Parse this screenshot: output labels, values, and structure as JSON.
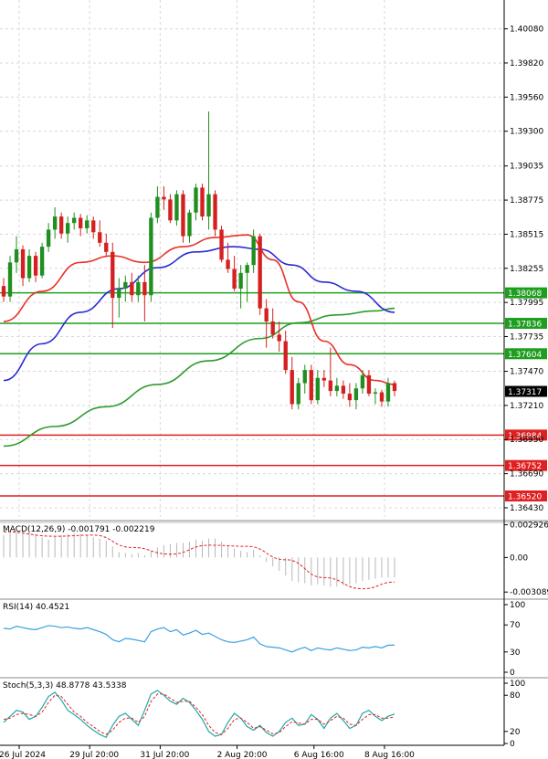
{
  "chart_data": {
    "type": "candlestick",
    "instrument_note": "",
    "price_pane": {
      "y_ticks": [
        "1.40080",
        "1.39820",
        "1.39560",
        "1.39300",
        "1.39035",
        "1.38775",
        "1.38515",
        "1.38255",
        "1.37995",
        "1.37735",
        "1.37470",
        "1.37210",
        "1.36950",
        "1.36690",
        "1.36430"
      ],
      "y_range": [
        1.3636,
        1.403
      ],
      "current_price": "1.37317",
      "levels": [
        {
          "label": "1.38068",
          "value": 1.38068,
          "color": "#1e9e1e"
        },
        {
          "label": "1.37836",
          "value": 1.37836,
          "color": "#1e9e1e"
        },
        {
          "label": "1.37604",
          "value": 1.37604,
          "color": "#1e9e1e"
        },
        {
          "label": "1.36984",
          "value": 1.36984,
          "color": "#e02020"
        },
        {
          "label": "1.36752",
          "value": 1.36752,
          "color": "#e02020"
        },
        {
          "label": "1.36520",
          "value": 1.3652,
          "color": "#e02020"
        }
      ],
      "candles": [
        [
          1.3812,
          1.3818,
          1.38,
          1.3804
        ],
        [
          1.3804,
          1.3835,
          1.38,
          1.383
        ],
        [
          1.383,
          1.385,
          1.3822,
          1.384
        ],
        [
          1.384,
          1.3843,
          1.3812,
          1.3818
        ],
        [
          1.3818,
          1.384,
          1.3815,
          1.3835
        ],
        [
          1.3835,
          1.3838,
          1.3815,
          1.382
        ],
        [
          1.382,
          1.3845,
          1.3818,
          1.3842
        ],
        [
          1.3842,
          1.386,
          1.3838,
          1.3855
        ],
        [
          1.3855,
          1.3872,
          1.3848,
          1.3865
        ],
        [
          1.3865,
          1.3868,
          1.3848,
          1.3852
        ],
        [
          1.3852,
          1.3865,
          1.3845,
          1.386
        ],
        [
          1.386,
          1.3868,
          1.3855,
          1.3864
        ],
        [
          1.3864,
          1.3867,
          1.385,
          1.3856
        ],
        [
          1.3856,
          1.3866,
          1.3852,
          1.3862
        ],
        [
          1.3862,
          1.3865,
          1.3848,
          1.3853
        ],
        [
          1.3853,
          1.3862,
          1.3842,
          1.3845
        ],
        [
          1.3845,
          1.3852,
          1.3835,
          1.3838
        ],
        [
          1.3838,
          1.3845,
          1.378,
          1.3803
        ],
        [
          1.3803,
          1.3818,
          1.3788,
          1.381
        ],
        [
          1.381,
          1.382,
          1.38,
          1.3815
        ],
        [
          1.3815,
          1.3822,
          1.38,
          1.3805
        ],
        [
          1.3805,
          1.382,
          1.38,
          1.3815
        ],
        [
          1.3815,
          1.3828,
          1.3785,
          1.3805
        ],
        [
          1.3805,
          1.3868,
          1.38,
          1.3864
        ],
        [
          1.3864,
          1.3888,
          1.386,
          1.388
        ],
        [
          1.388,
          1.3888,
          1.387,
          1.3878
        ],
        [
          1.3878,
          1.3882,
          1.386,
          1.3862
        ],
        [
          1.3862,
          1.3885,
          1.3858,
          1.3882
        ],
        [
          1.3882,
          1.3885,
          1.3845,
          1.385
        ],
        [
          1.385,
          1.387,
          1.3845,
          1.3868
        ],
        [
          1.3868,
          1.389,
          1.3862,
          1.3887
        ],
        [
          1.3887,
          1.389,
          1.3862,
          1.3865
        ],
        [
          1.3865,
          1.3945,
          1.3855,
          1.3882
        ],
        [
          1.3882,
          1.3885,
          1.385,
          1.3855
        ],
        [
          1.3855,
          1.3858,
          1.383,
          1.3832
        ],
        [
          1.3832,
          1.3845,
          1.3822,
          1.3825
        ],
        [
          1.3825,
          1.3835,
          1.3808,
          1.381
        ],
        [
          1.381,
          1.3828,
          1.3795,
          1.3822
        ],
        [
          1.3822,
          1.383,
          1.38,
          1.3828
        ],
        [
          1.3828,
          1.3855,
          1.3822,
          1.385
        ],
        [
          1.385,
          1.3852,
          1.379,
          1.3795
        ],
        [
          1.3795,
          1.3802,
          1.3765,
          1.3785
        ],
        [
          1.3785,
          1.3795,
          1.3772,
          1.3775
        ],
        [
          1.3775,
          1.3785,
          1.3762,
          1.377
        ],
        [
          1.377,
          1.3778,
          1.3745,
          1.3748
        ],
        [
          1.3748,
          1.3758,
          1.3718,
          1.3722
        ],
        [
          1.3722,
          1.3742,
          1.3718,
          1.3738
        ],
        [
          1.3738,
          1.3752,
          1.373,
          1.3748
        ],
        [
          1.3748,
          1.3752,
          1.3722,
          1.3725
        ],
        [
          1.3725,
          1.3748,
          1.3722,
          1.3742
        ],
        [
          1.3742,
          1.3748,
          1.3735,
          1.374
        ],
        [
          1.374,
          1.3765,
          1.3728,
          1.3732
        ],
        [
          1.3732,
          1.3742,
          1.3728,
          1.3736
        ],
        [
          1.3736,
          1.374,
          1.3726,
          1.373
        ],
        [
          1.373,
          1.3738,
          1.372,
          1.3725
        ],
        [
          1.3725,
          1.3738,
          1.3718,
          1.3734
        ],
        [
          1.3734,
          1.3748,
          1.373,
          1.3744
        ],
        [
          1.3744,
          1.3748,
          1.3728,
          1.373
        ],
        [
          1.373,
          1.3734,
          1.3722,
          1.3731
        ],
        [
          1.3731,
          1.3733,
          1.372,
          1.3724
        ],
        [
          1.3724,
          1.3742,
          1.372,
          1.3738
        ],
        [
          1.3738,
          1.374,
          1.3728,
          1.3732
        ]
      ],
      "ma_fast": {
        "color": "#e8312a",
        "values": [
          [
            0,
            1.3785
          ],
          [
            6,
            1.3808
          ],
          [
            12,
            1.383
          ],
          [
            17,
            1.3835
          ],
          [
            22,
            1.383
          ],
          [
            28,
            1.3842
          ],
          [
            33,
            1.3849
          ],
          [
            38,
            1.3851
          ],
          [
            42,
            1.3832
          ],
          [
            46,
            1.38
          ],
          [
            50,
            1.377
          ],
          [
            54,
            1.3752
          ],
          [
            58,
            1.374
          ],
          [
            61,
            1.3737
          ]
        ]
      },
      "ma_mid": {
        "color": "#2a2ad6",
        "values": [
          [
            0,
            1.374
          ],
          [
            6,
            1.3768
          ],
          [
            12,
            1.3792
          ],
          [
            18,
            1.381
          ],
          [
            24,
            1.3826
          ],
          [
            30,
            1.3838
          ],
          [
            36,
            1.3842
          ],
          [
            40,
            1.384
          ],
          [
            45,
            1.3828
          ],
          [
            50,
            1.3815
          ],
          [
            55,
            1.3808
          ],
          [
            61,
            1.3792
          ]
        ]
      },
      "ma_slow": {
        "color": "#2f9a2f",
        "values": [
          [
            0,
            1.369
          ],
          [
            8,
            1.3705
          ],
          [
            16,
            1.372
          ],
          [
            24,
            1.3737
          ],
          [
            32,
            1.3755
          ],
          [
            40,
            1.3772
          ],
          [
            46,
            1.3784
          ],
          [
            52,
            1.379
          ],
          [
            58,
            1.3793
          ],
          [
            61,
            1.3795
          ]
        ]
      }
    },
    "macd_pane": {
      "label": "MACD(12,26,9) -0.001791 -0.002219",
      "y_ticks": [
        "0.002926",
        "0.00",
        "-0.003089"
      ],
      "y_range": [
        -0.0034,
        0.0033
      ],
      "histogram": [
        0.002,
        0.0022,
        0.0023,
        0.0024,
        0.0023,
        0.0021,
        0.0018,
        0.0016,
        0.0019,
        0.002,
        0.0021,
        0.0022,
        0.0021,
        0.002,
        0.0018,
        0.0017,
        0.0015,
        0.001,
        0.0005,
        0.0004,
        0.0003,
        0.0004,
        0.0002,
        0.0006,
        0.0009,
        0.0011,
        0.0012,
        0.0013,
        0.0013,
        0.0014,
        0.0016,
        0.0015,
        0.0017,
        0.0017,
        0.0014,
        0.0011,
        0.0008,
        0.0006,
        0.0005,
        0.0007,
        0.0002,
        -0.0004,
        -0.0008,
        -0.0012,
        -0.0016,
        -0.0021,
        -0.0022,
        -0.0023,
        -0.0025,
        -0.0024,
        -0.0025,
        -0.0026,
        -0.0026,
        -0.0025,
        -0.0024,
        -0.0023,
        -0.0021,
        -0.002,
        -0.0019,
        -0.0018,
        -0.0018,
        -0.0018
      ],
      "signal": [
        [
          0,
          0.0023
        ],
        [
          8,
          0.0019
        ],
        [
          14,
          0.002
        ],
        [
          20,
          0.0009
        ],
        [
          26,
          0.0003
        ],
        [
          32,
          0.0011
        ],
        [
          38,
          0.001
        ],
        [
          44,
          -0.0002
        ],
        [
          50,
          -0.0018
        ],
        [
          56,
          -0.0028
        ],
        [
          61,
          -0.0022
        ]
      ]
    },
    "rsi_pane": {
      "label": "RSI(14) 40.4521",
      "y_ticks": [
        "100",
        "70",
        "30",
        "0"
      ],
      "y_range": [
        0,
        100
      ],
      "values": [
        65,
        64,
        68,
        66,
        64,
        63,
        66,
        69,
        68,
        66,
        67,
        65,
        64,
        66,
        63,
        60,
        56,
        48,
        45,
        50,
        49,
        47,
        45,
        60,
        64,
        66,
        60,
        63,
        55,
        58,
        62,
        56,
        58,
        53,
        48,
        45,
        44,
        46,
        48,
        52,
        42,
        38,
        37,
        36,
        33,
        30,
        34,
        37,
        32,
        36,
        34,
        33,
        36,
        34,
        32,
        33,
        37,
        36,
        38,
        36,
        40,
        40
      ]
    },
    "stoch_pane": {
      "label": "Stoch(5,3,3) 48.8778 43.5338",
      "y_ticks": [
        "100",
        "80",
        "20",
        "0"
      ],
      "y_range": [
        0,
        100
      ],
      "k": [
        35,
        45,
        55,
        52,
        40,
        45,
        60,
        78,
        85,
        72,
        55,
        48,
        40,
        30,
        22,
        15,
        10,
        30,
        45,
        50,
        40,
        30,
        55,
        82,
        88,
        80,
        70,
        65,
        75,
        68,
        55,
        40,
        20,
        12,
        15,
        35,
        50,
        42,
        28,
        22,
        30,
        18,
        12,
        20,
        35,
        42,
        30,
        32,
        48,
        40,
        25,
        42,
        50,
        38,
        25,
        30,
        50,
        55,
        45,
        38,
        45,
        49
      ],
      "d": [
        40,
        42,
        48,
        50,
        48,
        45,
        52,
        68,
        80,
        78,
        65,
        52,
        45,
        35,
        28,
        20,
        15,
        22,
        35,
        42,
        42,
        35,
        45,
        70,
        82,
        82,
        75,
        68,
        70,
        70,
        60,
        48,
        30,
        18,
        15,
        25,
        40,
        42,
        35,
        25,
        28,
        22,
        16,
        18,
        28,
        36,
        34,
        32,
        40,
        40,
        32,
        38,
        45,
        42,
        32,
        30,
        40,
        48,
        48,
        42,
        42,
        44
      ]
    },
    "x_labels": [
      {
        "index": 1,
        "text": "26 Jul 2024"
      },
      {
        "index": 12,
        "text": "29 Jul 20:00"
      },
      {
        "index": 23,
        "text": "31 Jul 20:00"
      },
      {
        "index": 35,
        "text": "2 Aug 20:00"
      },
      {
        "index": 47,
        "text": "6 Aug 16:00"
      },
      {
        "index": 58,
        "text": "8 Aug 16:00"
      }
    ]
  }
}
